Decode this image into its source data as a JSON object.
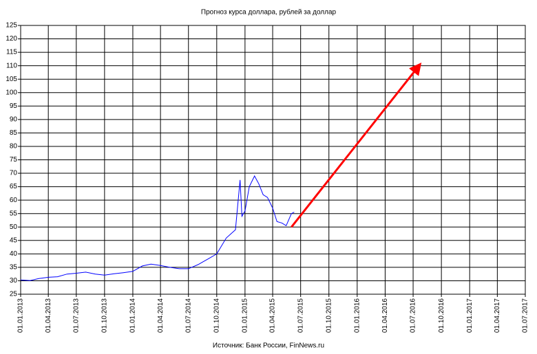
{
  "chart_data": {
    "type": "line",
    "title": "Прогноз курса доллара, рублей за доллар",
    "source": "Источник: Банк России, FinNews.ru",
    "xlim": [
      "2013-01-01",
      "2017-07-01"
    ],
    "xticks": [
      {
        "value": "2013-01-01",
        "label": "01.01.2013"
      },
      {
        "value": "2013-04-01",
        "label": "01.04.2013"
      },
      {
        "value": "2013-07-01",
        "label": "01.07.2013"
      },
      {
        "value": "2013-10-01",
        "label": "01.10.2013"
      },
      {
        "value": "2014-01-01",
        "label": "01.01.2014"
      },
      {
        "value": "2014-04-01",
        "label": "01.04.2014"
      },
      {
        "value": "2014-07-01",
        "label": "01.07.2014"
      },
      {
        "value": "2014-10-01",
        "label": "01.10.2014"
      },
      {
        "value": "2015-01-01",
        "label": "01.01.2015"
      },
      {
        "value": "2015-04-01",
        "label": "01.04.2015"
      },
      {
        "value": "2015-07-01",
        "label": "01.07.2015"
      },
      {
        "value": "2015-10-01",
        "label": "01.10.2015"
      },
      {
        "value": "2016-01-01",
        "label": "01.01.2016"
      },
      {
        "value": "2016-04-01",
        "label": "01.04.2016"
      },
      {
        "value": "2016-07-01",
        "label": "01.07.2016"
      },
      {
        "value": "2016-10-01",
        "label": "01.10.2016"
      },
      {
        "value": "2017-01-01",
        "label": "01.01.2017"
      },
      {
        "value": "2017-04-01",
        "label": "01.04.2017"
      },
      {
        "value": "2017-07-01",
        "label": "01.07.2017"
      }
    ],
    "ylim": [
      25,
      125
    ],
    "yticks": [
      25,
      30,
      35,
      40,
      45,
      50,
      55,
      60,
      65,
      70,
      75,
      80,
      85,
      90,
      95,
      100,
      105,
      110,
      115,
      120,
      125
    ],
    "grid": true,
    "series": [
      {
        "color": "#0000ff",
        "x": [
          "2013-01-01",
          "2013-02-01",
          "2013-03-01",
          "2013-04-01",
          "2013-05-01",
          "2013-06-01",
          "2013-07-01",
          "2013-08-01",
          "2013-09-01",
          "2013-10-01",
          "2013-11-01",
          "2013-12-01",
          "2014-01-01",
          "2014-02-01",
          "2014-03-01",
          "2014-04-01",
          "2014-05-01",
          "2014-06-01",
          "2014-07-01",
          "2014-08-01",
          "2014-09-01",
          "2014-10-01",
          "2014-11-01",
          "2014-12-01",
          "2014-12-16",
          "2014-12-22",
          "2015-01-01",
          "2015-01-15",
          "2015-02-01",
          "2015-02-15",
          "2015-03-01",
          "2015-03-15",
          "2015-04-01",
          "2015-04-15",
          "2015-05-01",
          "2015-05-15",
          "2015-06-01",
          "2015-06-10"
        ],
        "values": [
          30.3,
          30.1,
          30.8,
          31.3,
          31.5,
          32.5,
          32.8,
          33.2,
          32.5,
          32.1,
          32.6,
          33,
          33.5,
          35.5,
          36.2,
          35.7,
          35,
          34.5,
          34.5,
          36,
          38,
          40,
          45.9,
          49,
          67.5,
          54,
          56,
          65,
          69,
          66,
          62,
          61,
          57,
          52,
          51.5,
          50.5,
          55,
          55.5
        ]
      },
      {
        "color": "#ff0000",
        "arrow": true,
        "x": [
          "2015-06-01",
          "2016-07-20"
        ],
        "values": [
          50,
          110
        ]
      }
    ]
  }
}
